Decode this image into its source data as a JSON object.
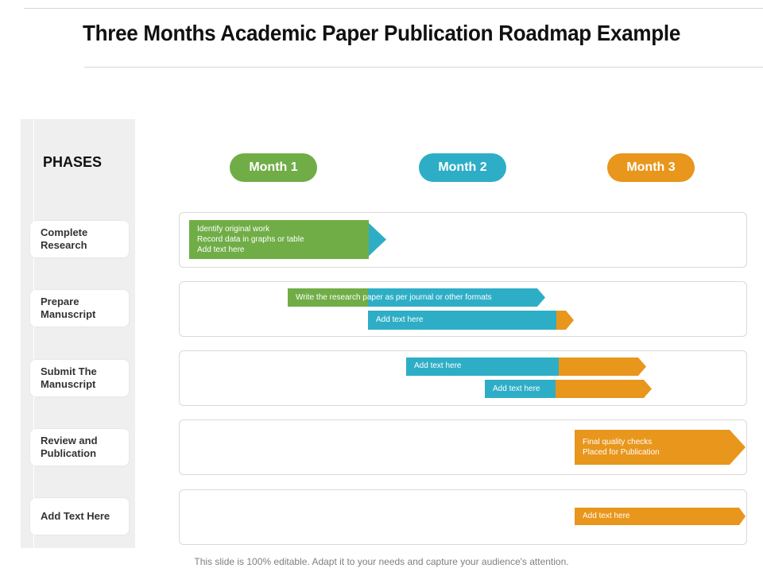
{
  "title": "Three Months Academic Paper Publication Roadmap Example",
  "phases_heading": "PHASES",
  "phases": [
    {
      "label": "Complete\nResearch"
    },
    {
      "label": "Prepare\nManuscript"
    },
    {
      "label": "Submit The\nManuscript"
    },
    {
      "label": "Review and\nPublication"
    },
    {
      "label": "Add Text Here"
    }
  ],
  "months": [
    {
      "label": "Month 1",
      "color": "#70ad47"
    },
    {
      "label": "Month 2",
      "color": "#2eaec6"
    },
    {
      "label": "Month 3",
      "color": "#e8961c"
    }
  ],
  "tasks": {
    "research": "Identify original work\nRecord data in  graphs or table\nAdd text here",
    "write_paper": "Write the research paper as per journal or other formats",
    "prepare_2": "Add text here",
    "submit_1": "Add text here",
    "submit_2": "Add text here",
    "review": "Final quality checks\nPlaced  for Publication",
    "add_text": "Add text here"
  },
  "colors": {
    "green": "#70ad47",
    "teal": "#2eaec6",
    "orange": "#e8961c"
  },
  "footer": "This slide is 100% editable. Adapt it to your needs and capture your audience's attention."
}
